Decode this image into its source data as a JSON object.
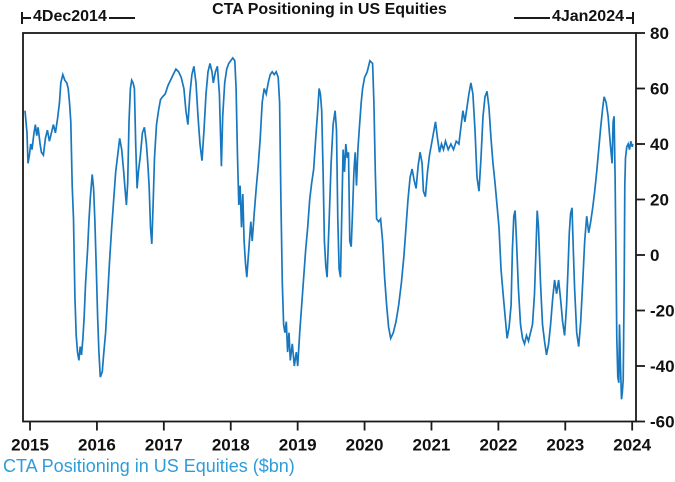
{
  "title": "CTA Positioning in US Equities",
  "footer": "CTA Positioning in US Equities ($bn)",
  "annotations": {
    "start": "4Dec2014",
    "end": "4Jan2024"
  },
  "colors": {
    "line": "#1878bf",
    "axis": "#1a1a1a",
    "footer_text": "#2d9cdb",
    "title_text": "#111111"
  },
  "chart_data": {
    "type": "line",
    "title": "CTA Positioning in US Equities",
    "series_label": "CTA Positioning in US Equities ($bn)",
    "date_range": {
      "start": "4Dec2014",
      "end": "4Jan2024"
    },
    "xlabel": "",
    "ylabel": "",
    "grid": false,
    "legend_position": "none",
    "y_axis_side": "right",
    "xlim": [
      2014.895,
      2024.057
    ],
    "ylim": [
      -60,
      80
    ],
    "x_ticks": [
      2015,
      2016,
      2017,
      2018,
      2019,
      2020,
      2021,
      2022,
      2023,
      2024
    ],
    "y_ticks": [
      80,
      60,
      40,
      20,
      0,
      -20,
      -40,
      -60
    ],
    "points": [
      [
        2014.925,
        52
      ],
      [
        2014.94,
        48
      ],
      [
        2014.955,
        44
      ],
      [
        2014.97,
        33
      ],
      [
        2014.99,
        36
      ],
      [
        2015.01,
        40
      ],
      [
        2015.03,
        38
      ],
      [
        2015.06,
        44
      ],
      [
        2015.08,
        47
      ],
      [
        2015.1,
        43
      ],
      [
        2015.12,
        46
      ],
      [
        2015.15,
        40
      ],
      [
        2015.17,
        37
      ],
      [
        2015.2,
        36
      ],
      [
        2015.23,
        42
      ],
      [
        2015.26,
        45
      ],
      [
        2015.29,
        41
      ],
      [
        2015.32,
        44
      ],
      [
        2015.35,
        47
      ],
      [
        2015.38,
        44
      ],
      [
        2015.41,
        49
      ],
      [
        2015.44,
        55
      ],
      [
        2015.46,
        62
      ],
      [
        2015.49,
        65
      ],
      [
        2015.52,
        63
      ],
      [
        2015.55,
        62
      ],
      [
        2015.57,
        60
      ],
      [
        2015.59,
        55
      ],
      [
        2015.61,
        48
      ],
      [
        2015.63,
        25
      ],
      [
        2015.65,
        13
      ],
      [
        2015.67,
        -15
      ],
      [
        2015.69,
        -29
      ],
      [
        2015.71,
        -35
      ],
      [
        2015.73,
        -38
      ],
      [
        2015.75,
        -33
      ],
      [
        2015.77,
        -36
      ],
      [
        2015.79,
        -30
      ],
      [
        2015.81,
        -22
      ],
      [
        2015.83,
        -10
      ],
      [
        2015.86,
        2
      ],
      [
        2015.88,
        12
      ],
      [
        2015.9,
        20
      ],
      [
        2015.93,
        29
      ],
      [
        2015.95,
        24
      ],
      [
        2015.97,
        12
      ],
      [
        2015.99,
        -5
      ],
      [
        2016.01,
        -22
      ],
      [
        2016.03,
        -35
      ],
      [
        2016.05,
        -44
      ],
      [
        2016.08,
        -42
      ],
      [
        2016.1,
        -36
      ],
      [
        2016.13,
        -28
      ],
      [
        2016.16,
        -15
      ],
      [
        2016.19,
        -2
      ],
      [
        2016.22,
        10
      ],
      [
        2016.25,
        20
      ],
      [
        2016.28,
        30
      ],
      [
        2016.31,
        36
      ],
      [
        2016.34,
        42
      ],
      [
        2016.37,
        38
      ],
      [
        2016.4,
        30
      ],
      [
        2016.42,
        24
      ],
      [
        2016.44,
        18
      ],
      [
        2016.46,
        26
      ],
      [
        2016.48,
        48
      ],
      [
        2016.5,
        60
      ],
      [
        2016.52,
        63
      ],
      [
        2016.54,
        62
      ],
      [
        2016.56,
        60
      ],
      [
        2016.58,
        40
      ],
      [
        2016.6,
        24
      ],
      [
        2016.62,
        30
      ],
      [
        2016.65,
        36
      ],
      [
        2016.68,
        44
      ],
      [
        2016.71,
        46
      ],
      [
        2016.74,
        40
      ],
      [
        2016.76,
        33
      ],
      [
        2016.78,
        25
      ],
      [
        2016.8,
        10
      ],
      [
        2016.82,
        4
      ],
      [
        2016.84,
        18
      ],
      [
        2016.86,
        35
      ],
      [
        2016.89,
        47
      ],
      [
        2016.92,
        52
      ],
      [
        2016.95,
        56
      ],
      [
        2016.98,
        57
      ],
      [
        2017.02,
        58
      ],
      [
        2017.06,
        61
      ],
      [
        2017.1,
        63
      ],
      [
        2017.14,
        65
      ],
      [
        2017.18,
        67
      ],
      [
        2017.22,
        66
      ],
      [
        2017.26,
        64
      ],
      [
        2017.3,
        60
      ],
      [
        2017.33,
        52
      ],
      [
        2017.36,
        47
      ],
      [
        2017.39,
        58
      ],
      [
        2017.42,
        65
      ],
      [
        2017.45,
        68
      ],
      [
        2017.48,
        62
      ],
      [
        2017.51,
        50
      ],
      [
        2017.54,
        40
      ],
      [
        2017.57,
        34
      ],
      [
        2017.6,
        45
      ],
      [
        2017.63,
        58
      ],
      [
        2017.66,
        66
      ],
      [
        2017.69,
        69
      ],
      [
        2017.72,
        66
      ],
      [
        2017.74,
        62
      ],
      [
        2017.77,
        66
      ],
      [
        2017.8,
        68
      ],
      [
        2017.83,
        58
      ],
      [
        2017.86,
        32
      ],
      [
        2017.88,
        50
      ],
      [
        2017.91,
        62
      ],
      [
        2017.94,
        67
      ],
      [
        2017.97,
        69
      ],
      [
        2018.0,
        70
      ],
      [
        2018.03,
        71
      ],
      [
        2018.06,
        70
      ],
      [
        2018.08,
        60
      ],
      [
        2018.1,
        37
      ],
      [
        2018.12,
        18
      ],
      [
        2018.14,
        25
      ],
      [
        2018.16,
        10
      ],
      [
        2018.18,
        22
      ],
      [
        2018.2,
        5
      ],
      [
        2018.22,
        -3
      ],
      [
        2018.24,
        -8
      ],
      [
        2018.27,
        2
      ],
      [
        2018.3,
        12
      ],
      [
        2018.32,
        5
      ],
      [
        2018.35,
        15
      ],
      [
        2018.38,
        24
      ],
      [
        2018.41,
        32
      ],
      [
        2018.44,
        42
      ],
      [
        2018.47,
        55
      ],
      [
        2018.5,
        60
      ],
      [
        2018.53,
        58
      ],
      [
        2018.56,
        62
      ],
      [
        2018.59,
        65
      ],
      [
        2018.62,
        66
      ],
      [
        2018.65,
        65
      ],
      [
        2018.68,
        66
      ],
      [
        2018.71,
        64
      ],
      [
        2018.73,
        55
      ],
      [
        2018.75,
        20
      ],
      [
        2018.77,
        -10
      ],
      [
        2018.79,
        -25
      ],
      [
        2018.81,
        -28
      ],
      [
        2018.83,
        -24
      ],
      [
        2018.85,
        -35
      ],
      [
        2018.87,
        -28
      ],
      [
        2018.89,
        -38
      ],
      [
        2018.92,
        -32
      ],
      [
        2018.95,
        -40
      ],
      [
        2018.98,
        -35
      ],
      [
        2019.0,
        -40
      ],
      [
        2019.03,
        -28
      ],
      [
        2019.06,
        -18
      ],
      [
        2019.09,
        -8
      ],
      [
        2019.12,
        2
      ],
      [
        2019.15,
        10
      ],
      [
        2019.18,
        20
      ],
      [
        2019.21,
        26
      ],
      [
        2019.24,
        31
      ],
      [
        2019.27,
        42
      ],
      [
        2019.3,
        52
      ],
      [
        2019.32,
        60
      ],
      [
        2019.34,
        58
      ],
      [
        2019.36,
        52
      ],
      [
        2019.38,
        30
      ],
      [
        2019.4,
        5
      ],
      [
        2019.42,
        -4
      ],
      [
        2019.44,
        -8
      ],
      [
        2019.47,
        12
      ],
      [
        2019.5,
        33
      ],
      [
        2019.53,
        47
      ],
      [
        2019.56,
        52
      ],
      [
        2019.58,
        45
      ],
      [
        2019.6,
        13
      ],
      [
        2019.62,
        -5
      ],
      [
        2019.64,
        -8
      ],
      [
        2019.66,
        15
      ],
      [
        2019.68,
        38
      ],
      [
        2019.7,
        30
      ],
      [
        2019.72,
        40
      ],
      [
        2019.74,
        35
      ],
      [
        2019.76,
        37
      ],
      [
        2019.78,
        5
      ],
      [
        2019.8,
        3
      ],
      [
        2019.82,
        15
      ],
      [
        2019.84,
        30
      ],
      [
        2019.86,
        37
      ],
      [
        2019.88,
        25
      ],
      [
        2019.9,
        38
      ],
      [
        2019.92,
        45
      ],
      [
        2019.95,
        55
      ],
      [
        2019.97,
        60
      ],
      [
        2020.0,
        64
      ],
      [
        2020.04,
        66
      ],
      [
        2020.08,
        70
      ],
      [
        2020.12,
        69
      ],
      [
        2020.14,
        55
      ],
      [
        2020.16,
        30
      ],
      [
        2020.18,
        13
      ],
      [
        2020.21,
        12
      ],
      [
        2020.24,
        13
      ],
      [
        2020.27,
        5
      ],
      [
        2020.3,
        -8
      ],
      [
        2020.33,
        -18
      ],
      [
        2020.36,
        -26
      ],
      [
        2020.39,
        -30
      ],
      [
        2020.43,
        -28
      ],
      [
        2020.47,
        -24
      ],
      [
        2020.51,
        -18
      ],
      [
        2020.55,
        -10
      ],
      [
        2020.59,
        0
      ],
      [
        2020.62,
        10
      ],
      [
        2020.65,
        20
      ],
      [
        2020.68,
        28
      ],
      [
        2020.71,
        31
      ],
      [
        2020.74,
        27
      ],
      [
        2020.77,
        24
      ],
      [
        2020.8,
        32
      ],
      [
        2020.83,
        37
      ],
      [
        2020.86,
        33
      ],
      [
        2020.88,
        23
      ],
      [
        2020.91,
        21
      ],
      [
        2020.94,
        30
      ],
      [
        2020.97,
        36
      ],
      [
        2021.0,
        40
      ],
      [
        2021.03,
        44
      ],
      [
        2021.06,
        48
      ],
      [
        2021.09,
        42
      ],
      [
        2021.12,
        37
      ],
      [
        2021.15,
        40
      ],
      [
        2021.18,
        38
      ],
      [
        2021.21,
        41
      ],
      [
        2021.25,
        38
      ],
      [
        2021.29,
        40
      ],
      [
        2021.33,
        38
      ],
      [
        2021.37,
        41
      ],
      [
        2021.41,
        40
      ],
      [
        2021.44,
        46
      ],
      [
        2021.47,
        52
      ],
      [
        2021.5,
        48
      ],
      [
        2021.53,
        53
      ],
      [
        2021.56,
        58
      ],
      [
        2021.59,
        62
      ],
      [
        2021.62,
        58
      ],
      [
        2021.65,
        45
      ],
      [
        2021.68,
        28
      ],
      [
        2021.71,
        23
      ],
      [
        2021.74,
        35
      ],
      [
        2021.77,
        50
      ],
      [
        2021.8,
        57
      ],
      [
        2021.83,
        59
      ],
      [
        2021.86,
        53
      ],
      [
        2021.89,
        42
      ],
      [
        2021.92,
        33
      ],
      [
        2021.95,
        26
      ],
      [
        2021.98,
        18
      ],
      [
        2022.01,
        10
      ],
      [
        2022.04,
        -5
      ],
      [
        2022.07,
        -14
      ],
      [
        2022.1,
        -22
      ],
      [
        2022.13,
        -30
      ],
      [
        2022.16,
        -26
      ],
      [
        2022.19,
        -18
      ],
      [
        2022.21,
        2
      ],
      [
        2022.23,
        14
      ],
      [
        2022.25,
        16
      ],
      [
        2022.27,
        6
      ],
      [
        2022.3,
        -12
      ],
      [
        2022.33,
        -25
      ],
      [
        2022.36,
        -30
      ],
      [
        2022.39,
        -32
      ],
      [
        2022.42,
        -29
      ],
      [
        2022.45,
        -31
      ],
      [
        2022.48,
        -28
      ],
      [
        2022.51,
        -25
      ],
      [
        2022.54,
        -14
      ],
      [
        2022.56,
        0
      ],
      [
        2022.58,
        16
      ],
      [
        2022.6,
        10
      ],
      [
        2022.63,
        -10
      ],
      [
        2022.66,
        -25
      ],
      [
        2022.69,
        -31
      ],
      [
        2022.72,
        -36
      ],
      [
        2022.75,
        -32
      ],
      [
        2022.78,
        -25
      ],
      [
        2022.81,
        -16
      ],
      [
        2022.84,
        -9
      ],
      [
        2022.87,
        -14
      ],
      [
        2022.9,
        -9
      ],
      [
        2022.93,
        -16
      ],
      [
        2022.96,
        -24
      ],
      [
        2022.99,
        -29
      ],
      [
        2023.02,
        -18
      ],
      [
        2023.04,
        -5
      ],
      [
        2023.06,
        8
      ],
      [
        2023.08,
        15
      ],
      [
        2023.1,
        17
      ],
      [
        2023.12,
        2
      ],
      [
        2023.14,
        -12
      ],
      [
        2023.17,
        -28
      ],
      [
        2023.2,
        -33
      ],
      [
        2023.23,
        -24
      ],
      [
        2023.26,
        -10
      ],
      [
        2023.29,
        5
      ],
      [
        2023.32,
        14
      ],
      [
        2023.35,
        8
      ],
      [
        2023.38,
        12
      ],
      [
        2023.41,
        17
      ],
      [
        2023.44,
        23
      ],
      [
        2023.47,
        30
      ],
      [
        2023.5,
        38
      ],
      [
        2023.53,
        46
      ],
      [
        2023.56,
        53
      ],
      [
        2023.58,
        57
      ],
      [
        2023.61,
        55
      ],
      [
        2023.64,
        50
      ],
      [
        2023.66,
        44
      ],
      [
        2023.68,
        38
      ],
      [
        2023.7,
        33
      ],
      [
        2023.715,
        48
      ],
      [
        2023.73,
        50
      ],
      [
        2023.745,
        28
      ],
      [
        2023.76,
        -5
      ],
      [
        2023.77,
        -30
      ],
      [
        2023.785,
        -44
      ],
      [
        2023.8,
        -46
      ],
      [
        2023.81,
        -25
      ],
      [
        2023.825,
        -40
      ],
      [
        2023.84,
        -52
      ],
      [
        2023.85,
        -50
      ],
      [
        2023.865,
        -45
      ],
      [
        2023.88,
        -10
      ],
      [
        2023.89,
        25
      ],
      [
        2023.9,
        35
      ],
      [
        2023.92,
        39
      ],
      [
        2023.94,
        40
      ],
      [
        2023.96,
        38
      ],
      [
        2023.98,
        41
      ],
      [
        2024.0,
        39
      ],
      [
        2024.01,
        40
      ]
    ]
  }
}
